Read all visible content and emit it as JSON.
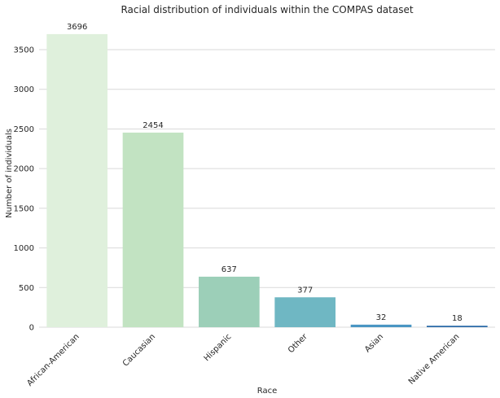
{
  "chart_data": {
    "type": "bar",
    "title": "Racial distribution of individuals within the COMPAS dataset",
    "xlabel": "Race",
    "ylabel": "Number of individuals",
    "categories": [
      "African-American",
      "Caucasian",
      "Hispanic",
      "Other",
      "Asian",
      "Native American"
    ],
    "values": [
      3696,
      2454,
      637,
      377,
      32,
      18
    ],
    "data_labels": [
      "3696",
      "2454",
      "637",
      "377",
      "32",
      "18"
    ],
    "ylim": [
      0,
      3880
    ],
    "yticks": [
      0,
      500,
      1000,
      1500,
      2000,
      2500,
      3000,
      3500
    ],
    "grid": "horizontal",
    "bar_colors": [
      "#dff0dc",
      "#c2e3c2",
      "#9ccfb8",
      "#6fb7c3",
      "#4a96c3",
      "#2b6aa8"
    ],
    "xtick_rotation": 45
  }
}
